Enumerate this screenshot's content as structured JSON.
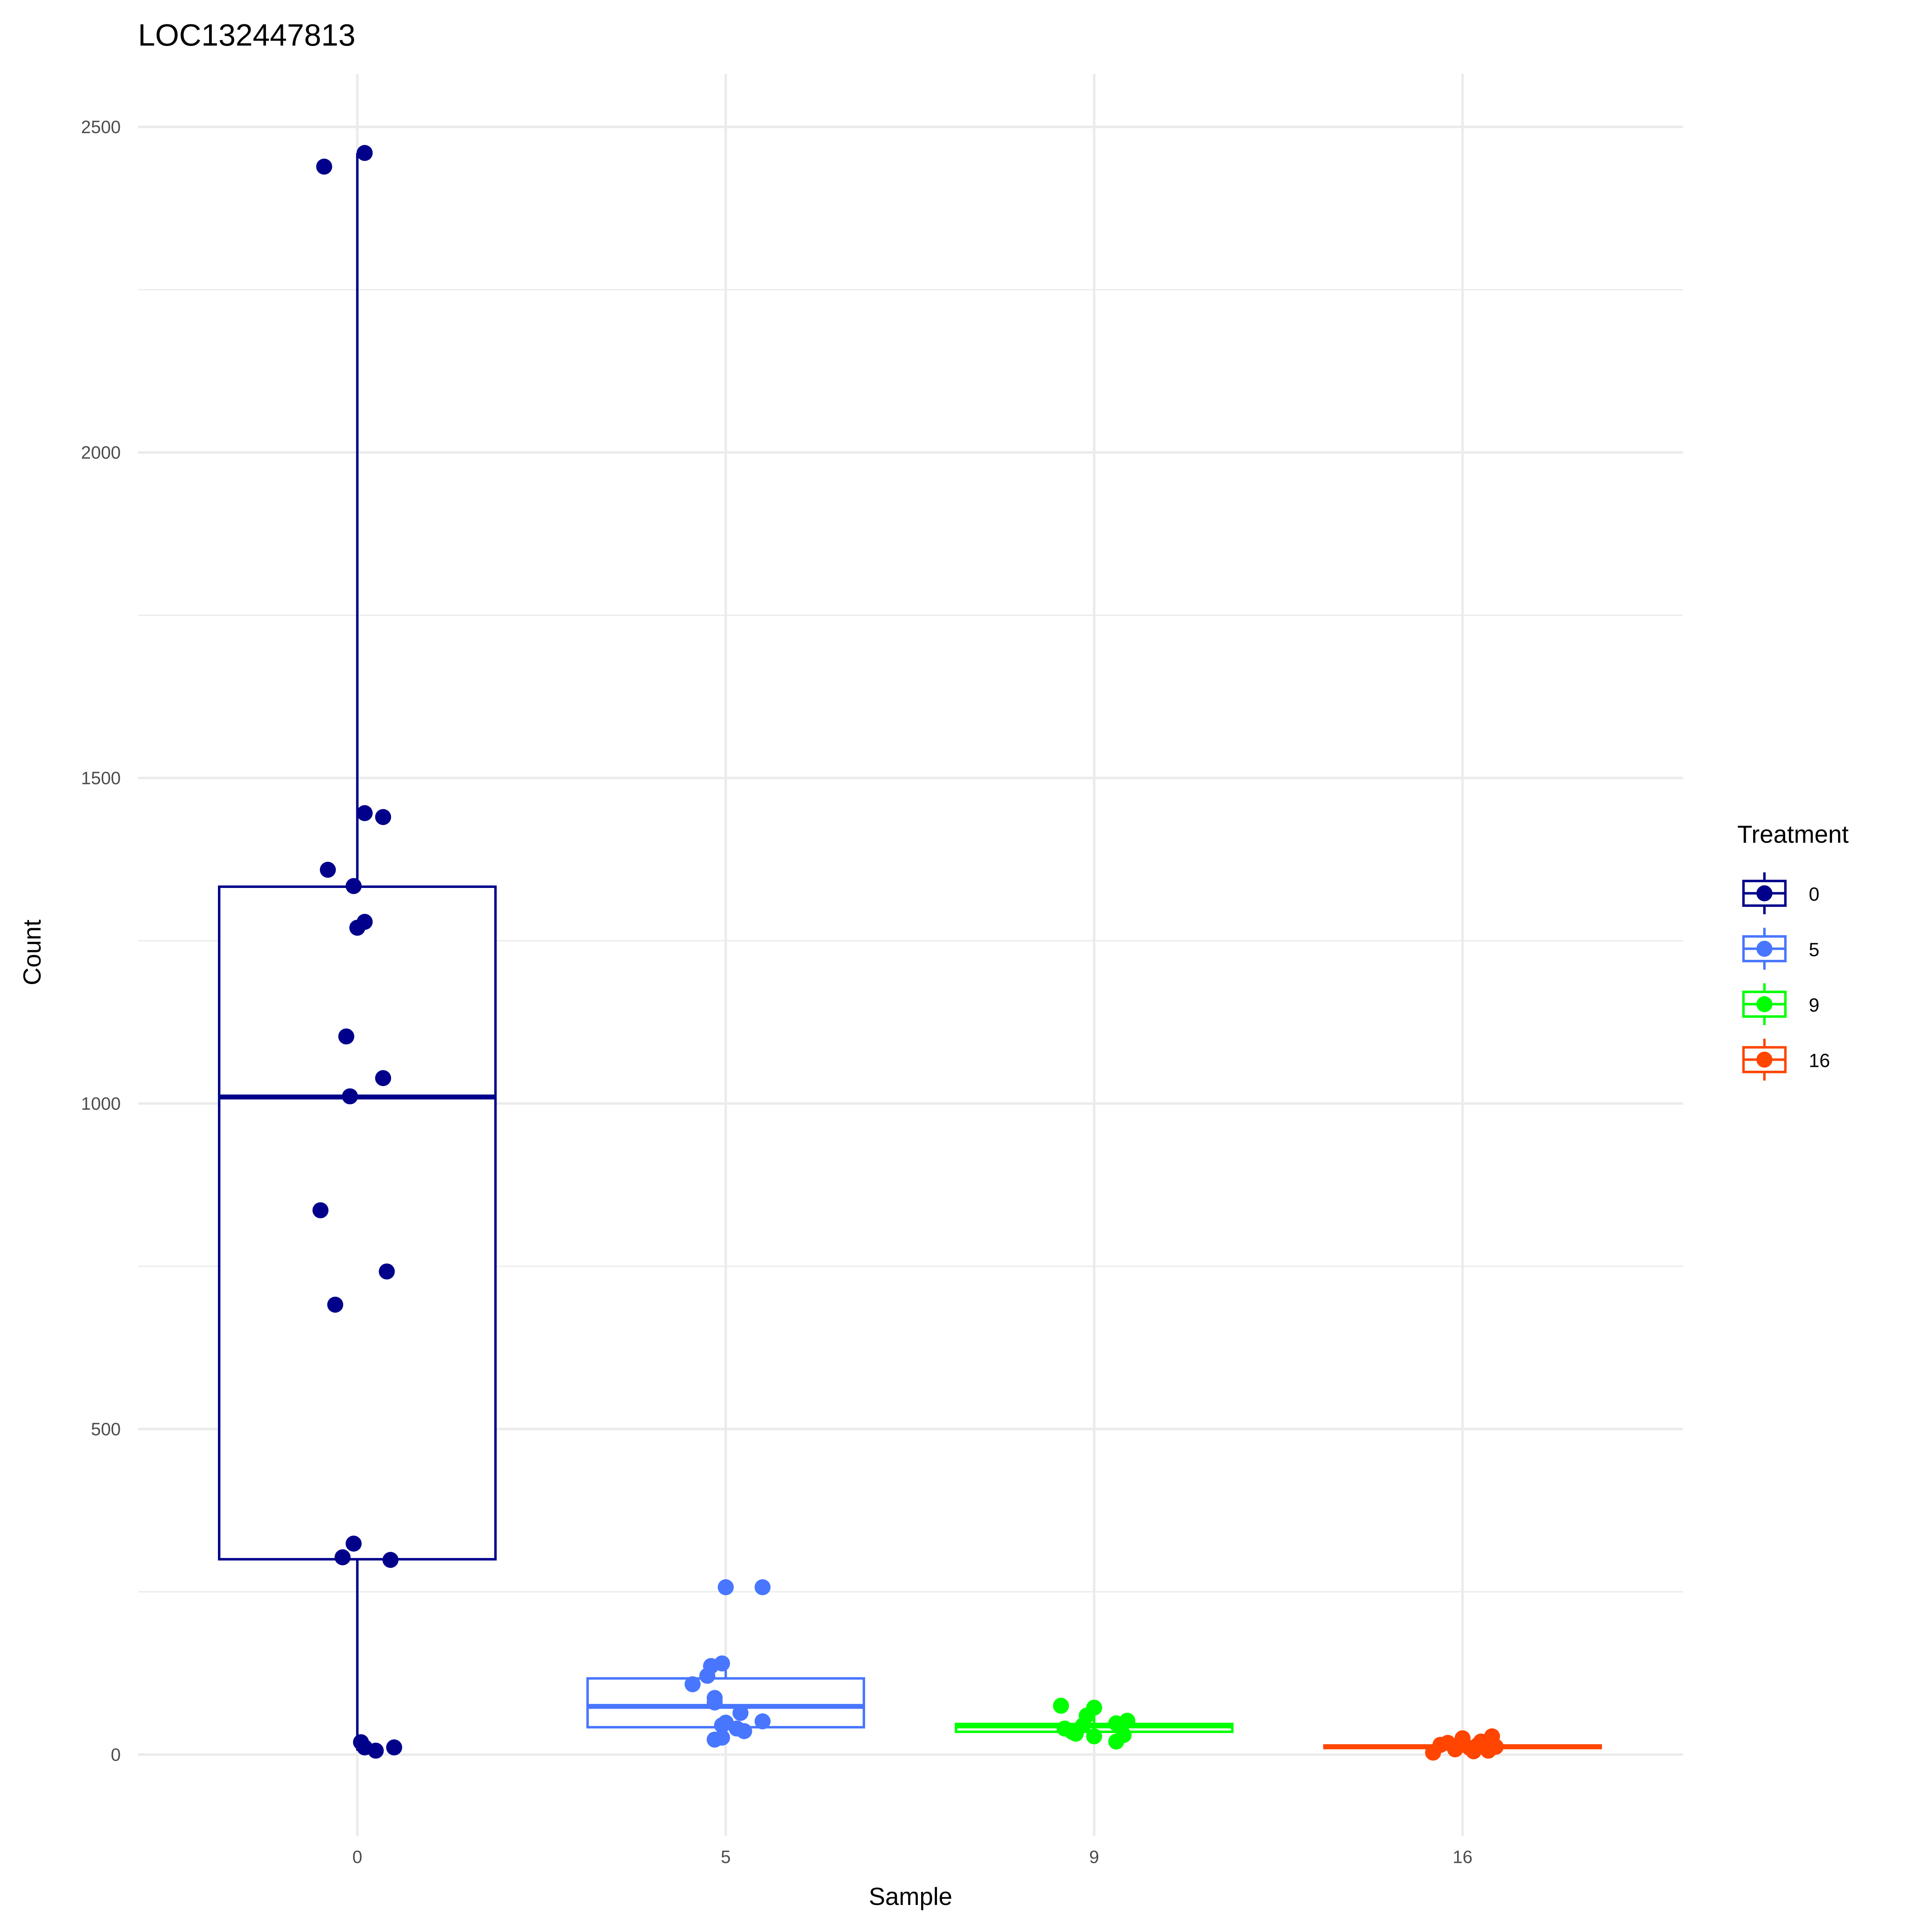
{
  "chart_data": {
    "type": "boxplot",
    "title": "LOC132447813",
    "xlabel": "Sample",
    "ylabel": "Count",
    "categories": [
      "0",
      "5",
      "9",
      "16"
    ],
    "ylim": [
      -120,
      2580
    ],
    "yticks": [
      0,
      500,
      1000,
      1500,
      2000,
      2500
    ],
    "ytick_labels": [
      "0",
      "500",
      "1000",
      "1500",
      "2000",
      "2500"
    ],
    "grid": true,
    "legend": {
      "title": "Treatment",
      "placement": "right",
      "entries": [
        {
          "label": "0",
          "color": "#00008B"
        },
        {
          "label": "5",
          "color": "#4876FF"
        },
        {
          "label": "9",
          "color": "#00FF00"
        },
        {
          "label": "16",
          "color": "#FF4500"
        }
      ]
    },
    "series": [
      {
        "name": "0",
        "color": "#00008B",
        "box": {
          "min": 6,
          "q1": 300,
          "median": 1010,
          "q3": 1333,
          "max": 2460
        },
        "points": [
          {
            "dx": -0.09,
            "y": 2439
          },
          {
            "dx": 0.02,
            "y": 2460
          },
          {
            "dx": 0.02,
            "y": 1446
          },
          {
            "dx": 0.07,
            "y": 1440
          },
          {
            "dx": -0.08,
            "y": 1359
          },
          {
            "dx": -0.01,
            "y": 1334
          },
          {
            "dx": 0.02,
            "y": 1279
          },
          {
            "dx": 0.0,
            "y": 1270
          },
          {
            "dx": -0.03,
            "y": 1103
          },
          {
            "dx": 0.07,
            "y": 1039
          },
          {
            "dx": -0.02,
            "y": 1011
          },
          {
            "dx": -0.1,
            "y": 836
          },
          {
            "dx": 0.08,
            "y": 742
          },
          {
            "dx": -0.06,
            "y": 691
          },
          {
            "dx": -0.01,
            "y": 324
          },
          {
            "dx": -0.04,
            "y": 303
          },
          {
            "dx": 0.09,
            "y": 299
          },
          {
            "dx": 0.01,
            "y": 19
          },
          {
            "dx": 0.02,
            "y": 11
          },
          {
            "dx": 0.05,
            "y": 6
          },
          {
            "dx": 0.1,
            "y": 11
          }
        ]
      },
      {
        "name": "5",
        "color": "#4876FF",
        "box": {
          "min": 23,
          "q1": 42,
          "median": 74,
          "q3": 117,
          "max": 140
        },
        "points": [
          {
            "dx": 0.0,
            "y": 257
          },
          {
            "dx": 0.1,
            "y": 257
          },
          {
            "dx": -0.04,
            "y": 136
          },
          {
            "dx": -0.01,
            "y": 140
          },
          {
            "dx": -0.05,
            "y": 121
          },
          {
            "dx": -0.09,
            "y": 108
          },
          {
            "dx": -0.03,
            "y": 87
          },
          {
            "dx": -0.03,
            "y": 80
          },
          {
            "dx": 0.04,
            "y": 64
          },
          {
            "dx": 0.0,
            "y": 49
          },
          {
            "dx": 0.1,
            "y": 51
          },
          {
            "dx": -0.01,
            "y": 45
          },
          {
            "dx": 0.05,
            "y": 36
          },
          {
            "dx": 0.03,
            "y": 40
          },
          {
            "dx": -0.03,
            "y": 23
          },
          {
            "dx": -0.01,
            "y": 26
          }
        ]
      },
      {
        "name": "9",
        "color": "#00FF00",
        "box": {
          "min": 20,
          "q1": 35,
          "median": 44,
          "q3": 47,
          "max": 75
        },
        "points": [
          {
            "dx": -0.09,
            "y": 75
          },
          {
            "dx": 0.0,
            "y": 72
          },
          {
            "dx": -0.02,
            "y": 60
          },
          {
            "dx": 0.09,
            "y": 52
          },
          {
            "dx": 0.06,
            "y": 48
          },
          {
            "dx": -0.08,
            "y": 40
          },
          {
            "dx": -0.06,
            "y": 35
          },
          {
            "dx": -0.05,
            "y": 32
          },
          {
            "dx": 0.0,
            "y": 28
          },
          {
            "dx": 0.06,
            "y": 20
          },
          {
            "dx": 0.08,
            "y": 30
          },
          {
            "dx": -0.03,
            "y": 45
          }
        ]
      },
      {
        "name": "16",
        "color": "#FF4500",
        "box": {
          "min": 3,
          "q1": 10,
          "median": 12,
          "q3": 14,
          "max": 28
        },
        "points": [
          {
            "dx": -0.08,
            "y": 3
          },
          {
            "dx": -0.06,
            "y": 15
          },
          {
            "dx": -0.04,
            "y": 18
          },
          {
            "dx": -0.02,
            "y": 8
          },
          {
            "dx": 0.0,
            "y": 25
          },
          {
            "dx": 0.02,
            "y": 10
          },
          {
            "dx": 0.04,
            "y": 14
          },
          {
            "dx": 0.05,
            "y": 20
          },
          {
            "dx": 0.07,
            "y": 6
          },
          {
            "dx": 0.08,
            "y": 28
          },
          {
            "dx": 0.09,
            "y": 12
          },
          {
            "dx": 0.03,
            "y": 5
          }
        ]
      }
    ]
  }
}
